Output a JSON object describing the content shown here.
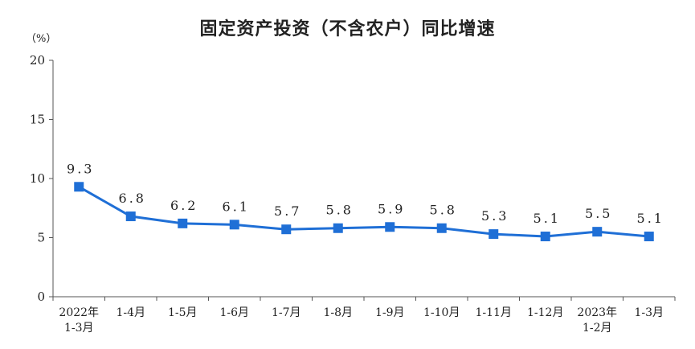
{
  "chart_data": {
    "type": "line",
    "title": "固定资产投资（不含农户）同比增速",
    "unit_label": "（%）",
    "ylim": [
      0,
      20
    ],
    "yticks": [
      "0",
      "5",
      "10",
      "15",
      "20"
    ],
    "grid": false,
    "categories": [
      [
        "2022年",
        "1-3月"
      ],
      [
        "1-4月"
      ],
      [
        "1-5月"
      ],
      [
        "1-6月"
      ],
      [
        "1-7月"
      ],
      [
        "1-8月"
      ],
      [
        "1-9月"
      ],
      [
        "1-10月"
      ],
      [
        "1-11月"
      ],
      [
        "1-12月"
      ],
      [
        "2023年",
        "1-2月"
      ],
      [
        "1-3月"
      ]
    ],
    "values": [
      9.3,
      6.8,
      6.2,
      6.1,
      5.7,
      5.8,
      5.9,
      5.8,
      5.3,
      5.1,
      5.5,
      5.1
    ],
    "data_labels": [
      "9.3",
      "6.8",
      "6.2",
      "6.1",
      "5.7",
      "5.8",
      "5.9",
      "5.8",
      "5.3",
      "5.1",
      "5.5",
      "5.1"
    ],
    "series_color": "#1f6fd6",
    "axis_color": "#555555"
  }
}
